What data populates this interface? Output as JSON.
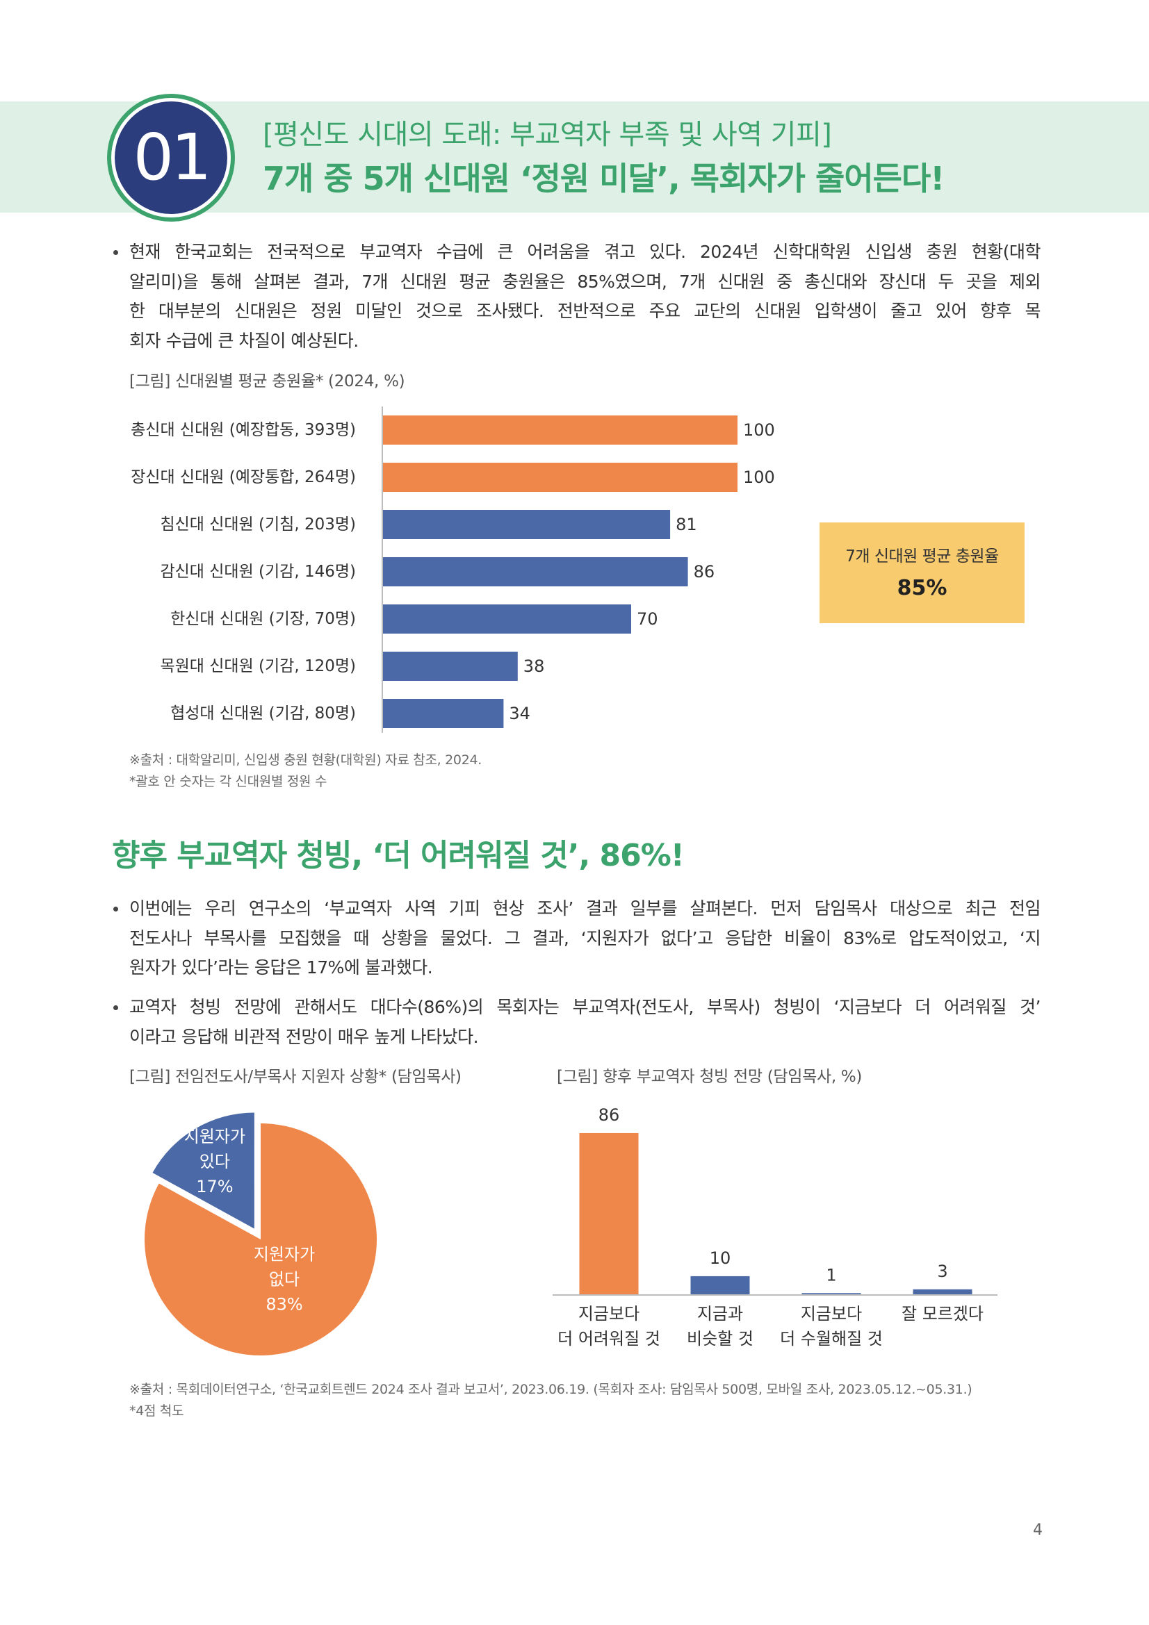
{
  "header": {
    "number": "01",
    "subtitle": "[평신도 시대의 도래: 부교역자 부족 및 사역 기피]",
    "title": "7개 중 5개 신대원 ‘정원 미달’, 목회자가 줄어든다!"
  },
  "section1": {
    "bullets": [
      {
        "lines": [
          "현재 한국교회는 전국적으로 부교역자 수급에 큰 어려움을 겪고 있다. 2024년 신학대학원 신입생 충원 현황(대학",
          "알리미)을 통해 살펴본 결과, 7개 신대원 평균 충원율은 85%였으며, 7개 신대원 중 총신대와 장신대 두 곳을 제외",
          "한 대부분의 신대원은 정원 미달인 것으로 조사됐다. 전반적으로 주요 교단의 신대원 입학생이 줄고 있어 향후 목",
          "회자 수급에 큰 차질이 예상된다."
        ]
      }
    ],
    "notes": [
      "※출처 : 대학알리미, 신입생 충원 현황(대학원) 자료 참조, 2024.",
      "*괄호 안 숫자는 각 신대원별 정원 수"
    ]
  },
  "section2": {
    "heading": "향후 부교역자 청빙, ‘더 어려워질 것’, 86%!",
    "bullets": [
      {
        "lines": [
          "이번에는 우리 연구소의 ‘부교역자 사역 기피 현상 조사’ 결과 일부를 살펴본다. 먼저 담임목사 대상으로 최근 전임",
          "전도사나 부목사를 모집했을 때 상황을 물었다. 그 결과, ‘지원자가 없다’고 응답한 비율이 83%로 압도적이었고, ‘지",
          "원자가 있다’라는 응답은 17%에 불과했다."
        ]
      },
      {
        "lines": [
          "교역자 청빙 전망에 관해서도 대다수(86%)의 목회자는 부교역자(전도사, 부목사) 청빙이 ‘지금보다 더 어려워질 것’",
          "이라고 응답해 비관적 전망이 매우 높게 나타났다."
        ]
      }
    ],
    "notes": [
      "※출처 : 목회데이터연구소, ‘한국교회트렌드 2024 조사 결과 보고서’, 2023.06.19. (목회자 조사: 담임목사 500명, 모바일 조사, 2023.05.12.~05.31.)",
      "*4점 척도"
    ]
  },
  "page_number": "4",
  "colors": {
    "accent_green": "#3BA36B",
    "header_band": "#DFF0E6",
    "badge_navy": "#2C3D7D",
    "orange": "#F0874A",
    "blue": "#4A69A6",
    "highlight_box": "#F8CB6E"
  },
  "chart_data": [
    {
      "type": "bar",
      "orientation": "horizontal",
      "title": "[그림] 신대원별 평균 충원율* (2024, %)",
      "categories": [
        "총신대 신대원 (예장합동, 393명)",
        "장신대 신대원 (예장통합, 264명)",
        "침신대 신대원 (기침, 203명)",
        "감신대 신대원 (기감, 146명)",
        "한신대 신대원 (기장, 70명)",
        "목원대 신대원 (기감, 120명)",
        "협성대 신대원 (기감, 80명)"
      ],
      "values": [
        100,
        100,
        81,
        86,
        70,
        38,
        34
      ],
      "colors": [
        "#F0874A",
        "#F0874A",
        "#4A69A6",
        "#4A69A6",
        "#4A69A6",
        "#4A69A6",
        "#4A69A6"
      ],
      "xlim": [
        0,
        100
      ],
      "xlabel": "",
      "ylabel": "",
      "grid": false,
      "annotation": {
        "label": "7개 신대원 평균 충원율",
        "value": "85%"
      }
    },
    {
      "type": "pie",
      "title": "[그림] 전임전도사/부목사 지원자 상황* (담임목사)",
      "slices": [
        {
          "label_lines": [
            "지원자가",
            "있다"
          ],
          "value": 17,
          "value_label": "17%",
          "color": "#4A69A6",
          "exploded": true
        },
        {
          "label_lines": [
            "지원자가",
            "없다"
          ],
          "value": 83,
          "value_label": "83%",
          "color": "#F0874A",
          "exploded": false
        }
      ]
    },
    {
      "type": "bar",
      "orientation": "vertical",
      "title": "[그림] 향후 부교역자 청빙 전망 (담임목사, %)",
      "categories": [
        [
          "지금보다",
          "더 어려워질 것"
        ],
        [
          "지금과",
          "비슷할 것"
        ],
        [
          "지금보다",
          "더 수월해질 것"
        ],
        [
          "잘 모르겠다"
        ]
      ],
      "values": [
        86,
        10,
        1,
        3
      ],
      "colors": [
        "#F0874A",
        "#4A69A6",
        "#4A69A6",
        "#4A69A6"
      ],
      "ylim": [
        0,
        100
      ],
      "xlabel": "",
      "ylabel": "",
      "grid": false
    }
  ]
}
